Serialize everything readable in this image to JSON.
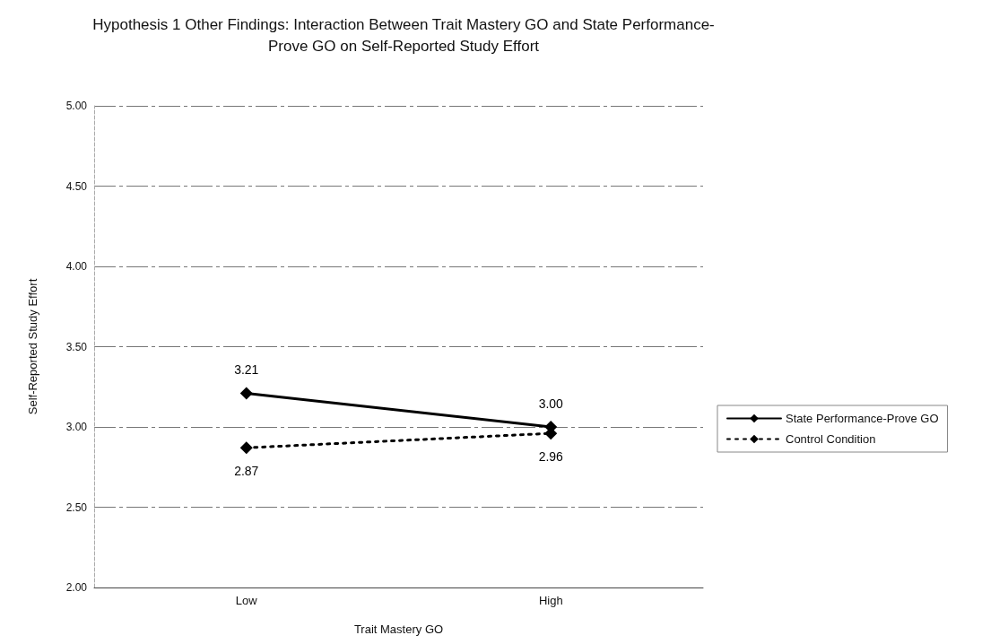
{
  "chart_data": {
    "type": "line",
    "title": "Hypothesis 1 Other Findings: Interaction Between Trait Mastery GO and State Performance-\nProve GO on Self-Reported Study Effort",
    "xlabel": "Trait Mastery GO",
    "ylabel": "Self-Reported Study Effort",
    "categories": [
      "Low",
      "High"
    ],
    "series": [
      {
        "name": "State Performance-Prove GO",
        "color": "#000000",
        "values": [
          3.21,
          3.0
        ],
        "value_labels": [
          "3.21",
          "3.00"
        ],
        "line_style": "solid"
      },
      {
        "name": "Control Condition",
        "color": "#000000",
        "values": [
          2.87,
          2.96
        ],
        "value_labels": [
          "2.87",
          "2.96"
        ],
        "line_style": "dotted"
      }
    ],
    "ylim": [
      2,
      5
    ],
    "yticks": [
      {
        "value": 2,
        "label": "2.00"
      },
      {
        "value": 2.5,
        "label": "2.50"
      },
      {
        "value": 3,
        "label": "3.00"
      },
      {
        "value": 3.5,
        "label": "3.50"
      },
      {
        "value": 4,
        "label": "4.00"
      },
      {
        "value": 4.5,
        "label": "4.50"
      },
      {
        "value": 5,
        "label": "5.00"
      }
    ],
    "grid": "y",
    "legend": "right",
    "marker": "diamond"
  }
}
